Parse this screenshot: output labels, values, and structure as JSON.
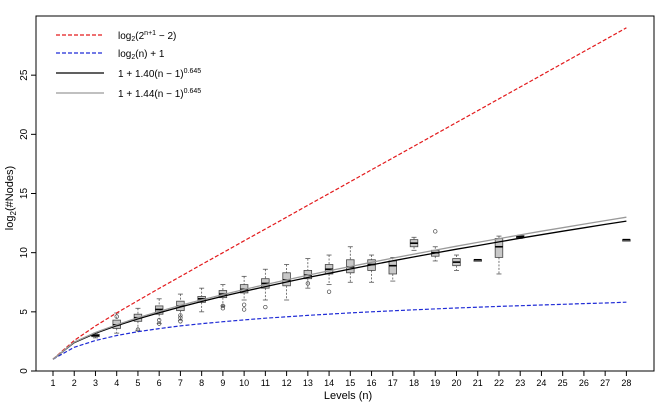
{
  "chart_data": {
    "type": "line",
    "title": "",
    "xlabel": "Levels (n)",
    "ylabel": "log2(#Nodes)",
    "xlim": [
      0.2,
      29.3
    ],
    "ylim": [
      0,
      30
    ],
    "x_ticks": [
      1,
      2,
      3,
      4,
      5,
      6,
      7,
      8,
      9,
      10,
      11,
      12,
      13,
      14,
      15,
      16,
      17,
      18,
      19,
      20,
      21,
      22,
      23,
      24,
      25,
      26,
      27,
      28
    ],
    "y_ticks": [
      0,
      5,
      10,
      15,
      20,
      25
    ],
    "grid": false,
    "legend_position": "top-left",
    "series": [
      {
        "name": "log2(2^(n+1) − 2)",
        "color": "#e31a1c",
        "style": "dashed",
        "x": [
          1,
          2,
          3,
          4,
          5,
          6,
          7,
          8,
          9,
          10,
          11,
          12,
          13,
          14,
          15,
          16,
          17,
          18,
          19,
          20,
          21,
          22,
          23,
          24,
          25,
          26,
          27,
          28
        ],
        "y": [
          1.0,
          2.58,
          3.81,
          4.91,
          5.95,
          6.98,
          7.99,
          9.0,
          10.0,
          11.0,
          12.0,
          13.0,
          14.0,
          15.0,
          16.0,
          17.0,
          18.0,
          19.0,
          20.0,
          21.0,
          22.0,
          23.0,
          24.0,
          25.0,
          26.0,
          27.0,
          28.0,
          29.0
        ]
      },
      {
        "name": "log2(n) + 1",
        "color": "#1f2bd6",
        "style": "dashed",
        "x": [
          1,
          2,
          3,
          4,
          5,
          6,
          7,
          8,
          9,
          10,
          11,
          12,
          13,
          14,
          15,
          16,
          17,
          18,
          19,
          20,
          21,
          22,
          23,
          24,
          25,
          26,
          27,
          28
        ],
        "y": [
          1.0,
          2.0,
          2.58,
          3.0,
          3.32,
          3.58,
          3.81,
          4.0,
          4.17,
          4.32,
          4.46,
          4.58,
          4.7,
          4.81,
          4.91,
          5.0,
          5.09,
          5.17,
          5.25,
          5.32,
          5.39,
          5.46,
          5.52,
          5.58,
          5.64,
          5.7,
          5.75,
          5.81
        ]
      },
      {
        "name": "1 + 1.40(n − 1)^0.645",
        "color": "#000000",
        "style": "solid",
        "x": [
          1,
          2,
          3,
          4,
          5,
          6,
          7,
          8,
          9,
          10,
          11,
          12,
          13,
          14,
          15,
          16,
          17,
          18,
          19,
          20,
          21,
          22,
          23,
          24,
          25,
          26,
          27,
          28
        ],
        "y": [
          1.0,
          2.4,
          3.19,
          3.83,
          4.4,
          4.93,
          5.41,
          5.87,
          6.31,
          6.73,
          7.13,
          7.52,
          7.9,
          8.26,
          8.62,
          8.97,
          9.31,
          9.64,
          9.97,
          10.29,
          10.6,
          10.91,
          11.22,
          11.52,
          11.81,
          12.1,
          12.39,
          12.67
        ]
      },
      {
        "name": "1 + 1.44(n − 1)^0.645",
        "color": "#9a9a9a",
        "style": "solid",
        "x": [
          1,
          2,
          3,
          4,
          5,
          6,
          7,
          8,
          9,
          10,
          11,
          12,
          13,
          14,
          15,
          16,
          17,
          18,
          19,
          20,
          21,
          22,
          23,
          24,
          25,
          26,
          27,
          28
        ],
        "y": [
          1.0,
          2.44,
          3.25,
          3.91,
          4.5,
          5.04,
          5.54,
          6.01,
          6.46,
          6.89,
          7.3,
          7.7,
          8.09,
          8.47,
          8.83,
          9.19,
          9.54,
          9.88,
          10.22,
          10.55,
          10.87,
          11.19,
          11.5,
          11.81,
          12.11,
          12.41,
          12.71,
          13.0
        ]
      }
    ],
    "boxplots": [
      {
        "x": 3,
        "min": 2.8,
        "q1": 2.9,
        "median": 3.0,
        "q3": 3.1,
        "max": 3.2,
        "outliers": []
      },
      {
        "x": 4,
        "min": 3.2,
        "q1": 3.6,
        "median": 3.9,
        "q3": 4.3,
        "max": 4.9,
        "outliers": [
          4.6
        ]
      },
      {
        "x": 5,
        "min": 3.4,
        "q1": 4.2,
        "median": 4.5,
        "q3": 4.8,
        "max": 5.3,
        "outliers": [
          3.5
        ]
      },
      {
        "x": 6,
        "min": 4.0,
        "q1": 4.8,
        "median": 5.2,
        "q3": 5.5,
        "max": 6.1,
        "outliers": [
          4.0,
          4.3
        ]
      },
      {
        "x": 7,
        "min": 4.3,
        "q1": 5.1,
        "median": 5.5,
        "q3": 5.9,
        "max": 6.5,
        "outliers": [
          4.2,
          4.5,
          4.7
        ]
      },
      {
        "x": 8,
        "min": 5.0,
        "q1": 5.8,
        "median": 6.1,
        "q3": 6.3,
        "max": 7.0,
        "outliers": []
      },
      {
        "x": 9,
        "min": 5.5,
        "q1": 6.2,
        "median": 6.5,
        "q3": 6.8,
        "max": 7.3,
        "outliers": [
          5.3,
          5.5
        ]
      },
      {
        "x": 10,
        "min": 6.0,
        "q1": 6.6,
        "median": 6.9,
        "q3": 7.3,
        "max": 8.0,
        "outliers": [
          5.2,
          5.6
        ]
      },
      {
        "x": 11,
        "min": 6.0,
        "q1": 7.0,
        "median": 7.4,
        "q3": 7.8,
        "max": 8.6,
        "outliers": [
          5.4
        ]
      },
      {
        "x": 12,
        "min": 6.0,
        "q1": 7.2,
        "median": 7.7,
        "q3": 8.3,
        "max": 9.0,
        "outliers": []
      },
      {
        "x": 13,
        "min": 7.0,
        "q1": 7.8,
        "median": 8.1,
        "q3": 8.5,
        "max": 9.5,
        "outliers": [
          7.4
        ]
      },
      {
        "x": 14,
        "min": 7.3,
        "q1": 8.2,
        "median": 8.6,
        "q3": 9.0,
        "max": 9.8,
        "outliers": [
          6.7
        ]
      },
      {
        "x": 15,
        "min": 7.5,
        "q1": 8.3,
        "median": 8.8,
        "q3": 9.4,
        "max": 10.5,
        "outliers": []
      },
      {
        "x": 16,
        "min": 7.5,
        "q1": 8.5,
        "median": 9.0,
        "q3": 9.4,
        "max": 9.8,
        "outliers": []
      },
      {
        "x": 17,
        "min": 7.6,
        "q1": 8.2,
        "median": 8.9,
        "q3": 9.3,
        "max": 9.6,
        "outliers": []
      },
      {
        "x": 18,
        "min": 10.2,
        "q1": 10.5,
        "median": 10.8,
        "q3": 11.1,
        "max": 11.3,
        "outliers": []
      },
      {
        "x": 19,
        "min": 9.3,
        "q1": 9.7,
        "median": 10.0,
        "q3": 10.2,
        "max": 10.5,
        "outliers": [
          11.8
        ]
      },
      {
        "x": 20,
        "min": 8.5,
        "q1": 8.9,
        "median": 9.2,
        "q3": 9.5,
        "max": 9.8,
        "outliers": []
      },
      {
        "x": 21,
        "min": 9.4,
        "q1": 9.4,
        "median": 9.4,
        "q3": 9.4,
        "max": 9.4,
        "outliers": []
      },
      {
        "x": 22,
        "min": 8.2,
        "q1": 9.6,
        "median": 10.5,
        "q3": 11.2,
        "max": 11.4,
        "outliers": []
      },
      {
        "x": 23,
        "min": 11.2,
        "q1": 11.25,
        "median": 11.35,
        "q3": 11.45,
        "max": 11.5,
        "outliers": []
      },
      {
        "x": 28,
        "min": 11.1,
        "q1": 11.1,
        "median": 11.1,
        "q3": 11.1,
        "max": 11.1,
        "outliers": []
      }
    ]
  }
}
